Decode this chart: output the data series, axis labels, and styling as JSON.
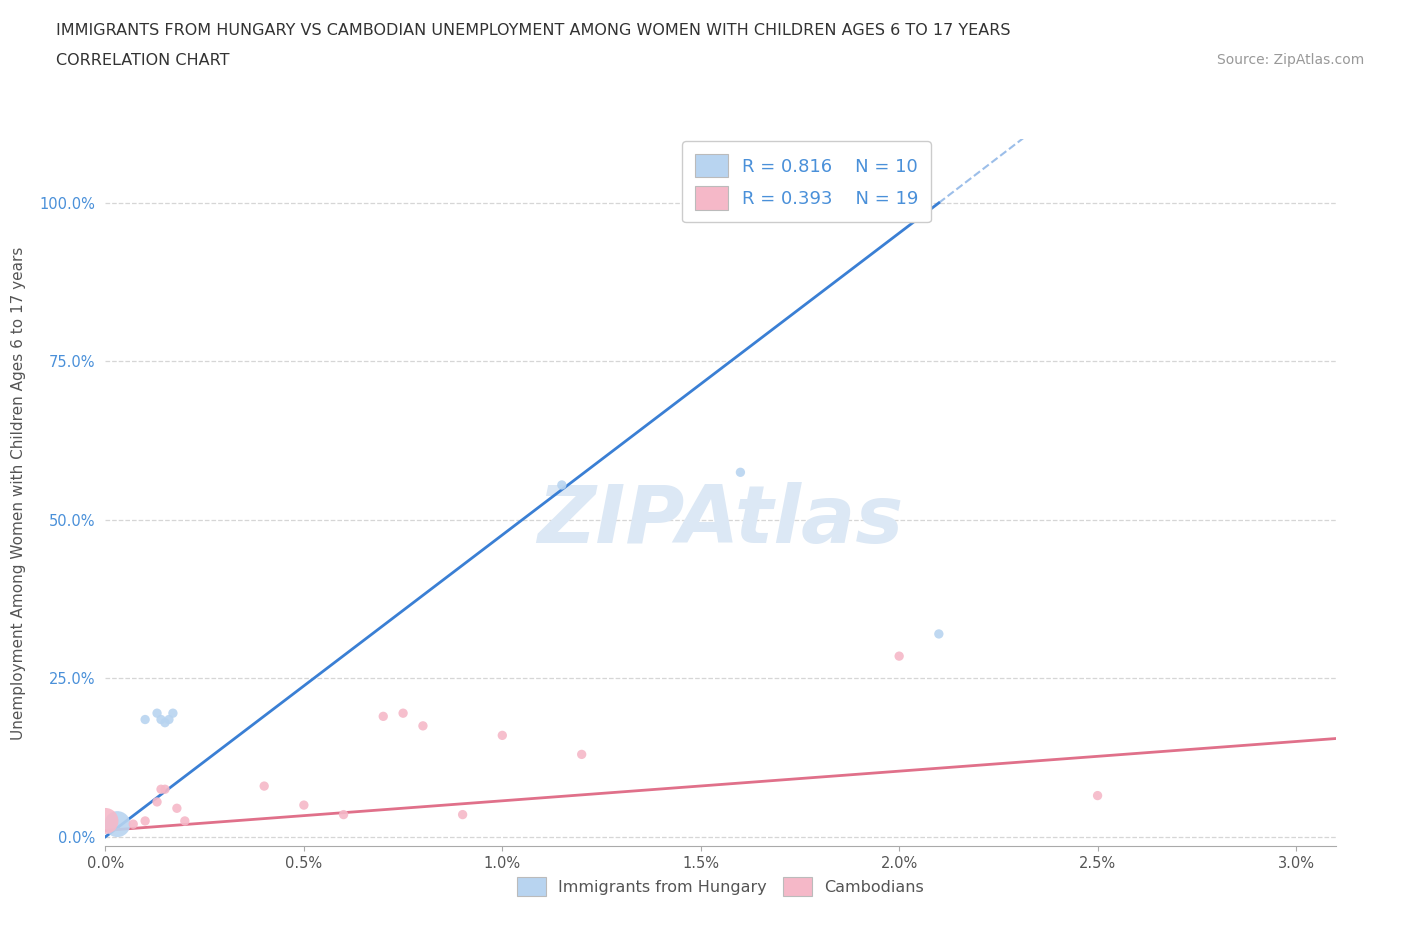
{
  "title_line1": "IMMIGRANTS FROM HUNGARY VS CAMBODIAN UNEMPLOYMENT AMONG WOMEN WITH CHILDREN AGES 6 TO 17 YEARS",
  "title_line2": "CORRELATION CHART",
  "source_text": "Source: ZipAtlas.com",
  "ylabel": "Unemployment Among Women with Children Ages 6 to 17 years",
  "xlim": [
    0.0,
    0.031
  ],
  "ylim": [
    -0.015,
    1.1
  ],
  "xtick_vals": [
    0.0,
    0.005,
    0.01,
    0.015,
    0.02,
    0.025,
    0.03
  ],
  "xtick_labels": [
    "0.0%",
    "0.5%",
    "1.0%",
    "1.5%",
    "2.0%",
    "2.5%",
    "3.0%"
  ],
  "ytick_vals": [
    0.0,
    0.25,
    0.5,
    0.75,
    1.0
  ],
  "ytick_labels": [
    "0.0%",
    "25.0%",
    "50.0%",
    "75.0%",
    "100.0%"
  ],
  "blue_fill": "#b8d4f0",
  "pink_fill": "#f5b8c8",
  "blue_line": "#3a7fd4",
  "pink_line": "#e0708a",
  "watermark_color": "#dce8f5",
  "legend_text_color": "#4a90d9",
  "legend_R1": "R = 0.816",
  "legend_N1": "N = 10",
  "legend_R2": "R = 0.393",
  "legend_N2": "N = 19",
  "blue_x": [
    0.0003,
    0.001,
    0.0013,
    0.0014,
    0.0015,
    0.0016,
    0.0017,
    0.0115,
    0.016,
    0.021
  ],
  "blue_y": [
    0.02,
    0.185,
    0.195,
    0.185,
    0.18,
    0.185,
    0.195,
    0.555,
    0.575,
    0.32
  ],
  "blue_size": [
    350,
    45,
    45,
    45,
    45,
    45,
    45,
    45,
    45,
    45
  ],
  "pink_x": [
    0.0,
    0.0007,
    0.001,
    0.0013,
    0.0014,
    0.0015,
    0.0018,
    0.002,
    0.004,
    0.005,
    0.006,
    0.007,
    0.0075,
    0.008,
    0.009,
    0.01,
    0.012,
    0.02,
    0.025
  ],
  "pink_y": [
    0.025,
    0.02,
    0.025,
    0.055,
    0.075,
    0.075,
    0.045,
    0.025,
    0.08,
    0.05,
    0.035,
    0.19,
    0.195,
    0.175,
    0.035,
    0.16,
    0.13,
    0.285,
    0.065
  ],
  "pink_size": [
    350,
    45,
    45,
    45,
    45,
    45,
    45,
    45,
    45,
    45,
    45,
    45,
    45,
    45,
    45,
    45,
    45,
    45,
    45
  ],
  "blue_line_x": [
    0.0,
    0.021
  ],
  "blue_line_y": [
    0.0,
    1.0
  ],
  "pink_line_x": [
    0.0,
    0.031
  ],
  "pink_line_y": [
    0.01,
    0.155
  ],
  "grid_color": "#cccccc",
  "bg_color": "#ffffff",
  "label_color": "#555555",
  "tick_color_y": "#4a90d9",
  "tick_color_x": "#555555",
  "axis_color": "#aaaaaa"
}
